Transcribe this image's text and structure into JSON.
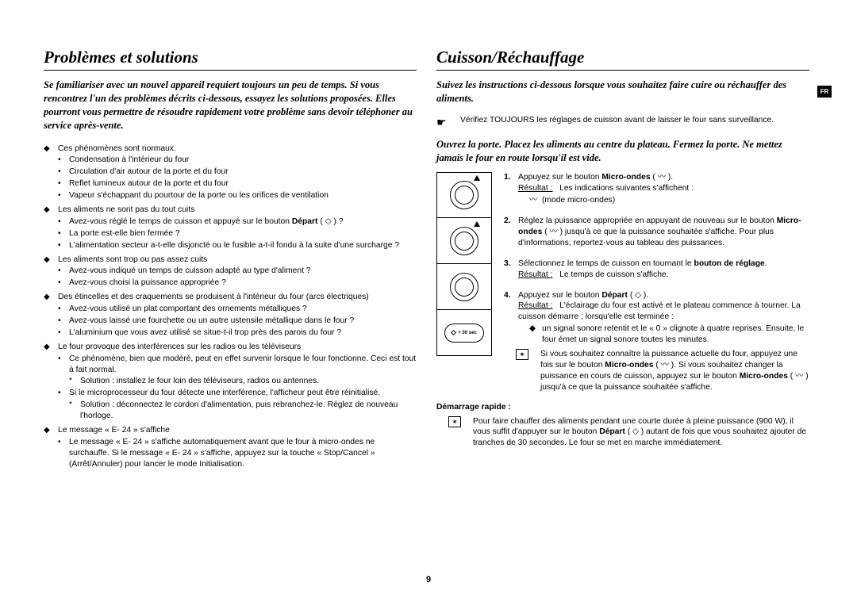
{
  "page_number": "9",
  "lang_tab": "FR",
  "left": {
    "title": "Problèmes et solutions",
    "intro": "Se familiariser avec un nouvel appareil requiert toujours un peu de temps. Si vous rencontrez l'un des problèmes décrits ci-dessous, essayez les solutions proposées. Elles pourront vous permettre de résoudre rapidement votre problème sans devoir téléphoner au service après-vente.",
    "items": [
      {
        "mark": "◆",
        "text": "Ces phénomènes sont normaux."
      },
      {
        "mark": "•",
        "lvl": 2,
        "text": "Condensation à l'intérieur du four"
      },
      {
        "mark": "•",
        "lvl": 2,
        "text": "Circulation d'air autour de la porte et du four"
      },
      {
        "mark": "•",
        "lvl": 2,
        "text": "Reflet lumineux autour de la porte et du four"
      },
      {
        "mark": "•",
        "lvl": 2,
        "text": "Vapeur s'échappant du pourtour de la porte ou les orifices de ventilation"
      },
      {
        "mark": "◆",
        "text": "Les aliments ne sont pas du tout cuits"
      },
      {
        "mark": "•",
        "lvl": 2,
        "text": "Avez-vous réglé le temps de cuisson et appuyé sur le bouton Départ ( ◇ ) ?",
        "bold_depart": true
      },
      {
        "mark": "•",
        "lvl": 2,
        "text": "La porte est-elle bien fermée ?"
      },
      {
        "mark": "•",
        "lvl": 2,
        "text": "L'alimentation secteur a-t-elle disjoncté ou le fusible a-t-il fondu à la suite d'une surcharge ?"
      },
      {
        "mark": "◆",
        "text": "Les aliments sont trop ou pas assez cuits"
      },
      {
        "mark": "•",
        "lvl": 2,
        "text": "Avez-vous indiqué un temps de cuisson adapté au type d'aliment ?"
      },
      {
        "mark": "•",
        "lvl": 2,
        "text": "Avez-vous choisi la puissance appropriée ?"
      },
      {
        "mark": "◆",
        "text": "Des étincelles et des craquements se produisent à l'intérieur du four (arcs électriques)"
      },
      {
        "mark": "•",
        "lvl": 2,
        "text": "Avez-vous utilisé un plat comportant des ornements métalliques ?"
      },
      {
        "mark": "•",
        "lvl": 2,
        "text": "Avez-vous laissé une fourchette ou un autre ustensile métallique dans le four ?"
      },
      {
        "mark": "•",
        "lvl": 2,
        "text": "L'aluminium que vous avez utilisé se situe-t-il trop près des parois du four ?"
      },
      {
        "mark": "◆",
        "text": "Le four provoque des interférences sur les radios ou les téléviseurs"
      },
      {
        "mark": "•",
        "lvl": 2,
        "text": "Ce phénomène, bien que modéré, peut en effet survenir lorsque le four fonctionne. Ceci est tout à fait normal."
      },
      {
        "mark": "*",
        "lvl": 3,
        "text": "Solution : installez le four loin des téléviseurs, radios ou antennes."
      },
      {
        "mark": "•",
        "lvl": 2,
        "text": "Si le microprocesseur du four détecte une interférence, l'afficheur peut être réinitialisé."
      },
      {
        "mark": "*",
        "lvl": 3,
        "text": "Solution : déconnectez le cordon d'alimentation, puis rebranchez-le. Réglez de nouveau l'horloge."
      },
      {
        "mark": "◆",
        "text": "Le message « E- 24 » s'affiche"
      },
      {
        "mark": "•",
        "lvl": 2,
        "text": "Le message « E- 24 » s'affiche automatiquement avant que le four à micro-ondes ne surchauffe. Si le message « E- 24 » s'affiche, appuyez sur la touche « Stop/Cancel » (Arrêt/Annuler) pour lancer le mode Initialisation."
      }
    ]
  },
  "right": {
    "title": "Cuisson/Réchauffage",
    "intro": "Suivez les instructions ci-dessous lorsque vous souhaitez faire cuire ou réchauffer des aliments.",
    "check": "Vérifiez TOUJOURS les réglages de cuisson avant de laisser le four sans surveillance.",
    "subintro": "Ouvrez la porte. Placez les aliments au centre du plateau. Fermez la porte. Ne mettez jamais le four en route lorsqu'il est vide.",
    "btn_label": "+ 30 sec",
    "steps": [
      {
        "num": "1.",
        "line1_pre": "Appuyez sur le bouton ",
        "line1_bold": "Micro-ondes",
        "line1_post": " ( 〰 ).",
        "result_label": "Résultat :",
        "result_text": "Les indications suivantes s'affichent :",
        "sub": [
          {
            "mark": "〰",
            "text": "(mode micro-ondes)"
          }
        ]
      },
      {
        "num": "2.",
        "text_pre": "Réglez la puissance appropriée en appuyant de nouveau sur le bouton ",
        "text_bold": "Micro-ondes",
        "text_post": " ( 〰 ) jusqu'à ce que la puissance souhaitée s'affiche. Pour plus d'informations, reportez-vous au tableau des puissances."
      },
      {
        "num": "3.",
        "text_pre": "Sélectionnez le temps de cuisson en tournant le ",
        "text_bold": "bouton de réglage",
        "text_post": ".",
        "result_label": "Résultat :",
        "result_text": "Le temps de cuisson s'affiche."
      },
      {
        "num": "4.",
        "line1_pre": "Appuyez sur le bouton ",
        "line1_bold": "Départ",
        "line1_post": " ( ◇ ).",
        "result_label": "Résultat :",
        "result_text": "L'éclairage du four est activé et le plateau commence à tourner. La cuisson démarre ; lorsqu'elle est terminée :",
        "sub": [
          {
            "mark": "◆",
            "text": "un signal sonore retentit et le « 0 » clignote à quatre reprises. Ensuite, le four émet un signal sonore toutes les minutes."
          }
        ]
      }
    ],
    "note": {
      "text_pre": "Si vous souhaitez connaître la puissance actuelle du four, appuyez une fois sur le bouton ",
      "text_bold1": "Micro-ondes",
      "text_mid": " ( 〰 ). Si vous souhaitez changer la puissance en cours de cuisson, appuyez sur le bouton ",
      "text_bold2": "Micro-ondes",
      "text_post": " ( 〰 ) jusqu'à ce que la puissance souhaitée s'affiche."
    },
    "quickstart_label": "Démarrage rapide :",
    "quickstart": {
      "text_pre": "Pour faire chauffer des aliments pendant une courte durée à pleine puissance (900 W), il vous suffit d'appuyer sur le bouton ",
      "text_bold": "Départ",
      "text_post": " ( ◇ ) autant de fois que vous souhaitez ajouter de tranches de 30 secondes. Le four se met en marche immédiatement."
    }
  }
}
